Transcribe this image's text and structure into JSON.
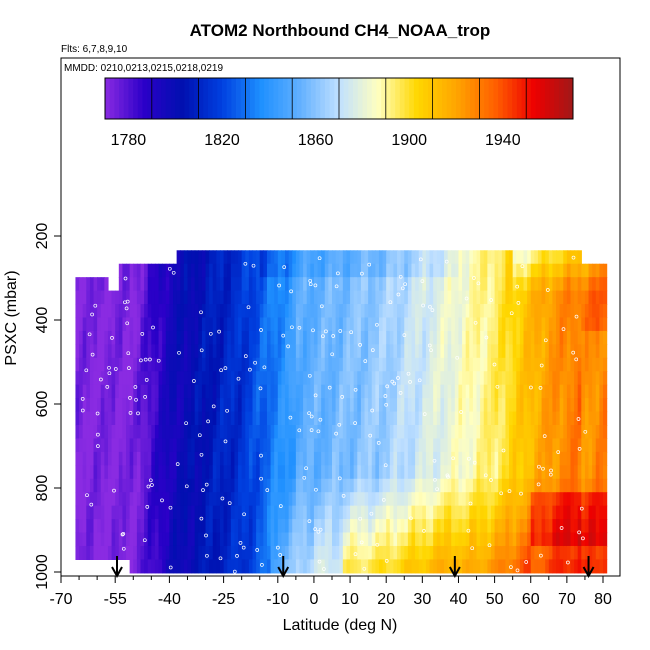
{
  "chart_data": {
    "type": "heatmap",
    "title": "ATOM2 Northbound CH4_NOAA_trop",
    "flights_note": "Flts: 6,7,8,9,10",
    "dates_note": "MMDD: 0210,0213,0215,0218,0219",
    "xlabel": "Latitude (deg N)",
    "ylabel": "PSXC (mbar)",
    "xlim": [
      -70,
      82
    ],
    "ylim": [
      1010,
      170
    ],
    "y_reversed": true,
    "x_ticks": [
      -70,
      -55,
      -40,
      -25,
      -10,
      0,
      10,
      20,
      30,
      40,
      50,
      60,
      70,
      80
    ],
    "y_ticks": [
      200,
      400,
      600,
      800,
      1000
    ],
    "colorbar": {
      "min": 1770,
      "max": 1970,
      "step": 20,
      "tick_values": [
        1780,
        1820,
        1860,
        1900,
        1940
      ],
      "colors": [
        "#8a2be2",
        "#2b00c8",
        "#0010b0",
        "#0040e0",
        "#1e90ff",
        "#62b0ff",
        "#c0e0ff",
        "#ffffc0",
        "#ffd700",
        "#ffa500",
        "#ff6000",
        "#ee0000",
        "#a01818"
      ]
    },
    "arrows_lat": [
      -54.5,
      -8.5,
      39,
      76
    ],
    "grid": false,
    "legend": "colorbar-top"
  }
}
